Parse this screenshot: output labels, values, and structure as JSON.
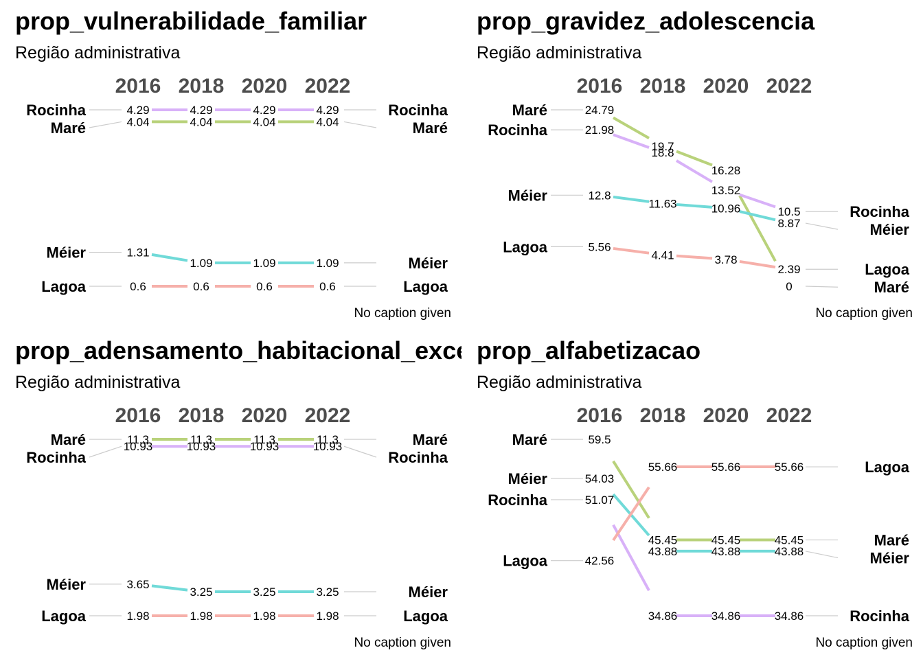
{
  "chart_data": [
    {
      "type": "line",
      "title": "prop_vulnerabilidade_familiar",
      "subtitle": "Região administrativa",
      "caption": "No caption given",
      "x": [
        "2016",
        "2018",
        "2020",
        "2022"
      ],
      "series": [
        {
          "name": "Rocinha",
          "color": "#d8b1f8",
          "values": [
            4.29,
            4.29,
            4.29,
            4.29
          ]
        },
        {
          "name": "Maré",
          "color": "#b9d27b",
          "values": [
            4.04,
            4.04,
            4.04,
            4.04
          ]
        },
        {
          "name": "Méier",
          "color": "#70dad8",
          "values": [
            1.31,
            1.09,
            1.09,
            1.09
          ]
        },
        {
          "name": "Lagoa",
          "color": "#f6b0aa",
          "values": [
            0.6,
            0.6,
            0.6,
            0.6
          ]
        }
      ],
      "value_labels": [
        [
          "4.29",
          "4.29",
          "4.29",
          "4.29"
        ],
        [
          "4.04",
          "4.04",
          "4.04",
          "4.04"
        ],
        [
          "1.31",
          "1.09",
          "1.09",
          "1.09"
        ],
        [
          "0.6",
          "0.6",
          "0.6",
          "0.6"
        ]
      ],
      "ylim": [
        0.6,
        4.29
      ],
      "grid": false,
      "legend": "none"
    },
    {
      "type": "line",
      "title": "prop_gravidez_adolescencia",
      "subtitle": "Região administrativa",
      "caption": "No caption given",
      "x": [
        "2016",
        "2018",
        "2020",
        "2022"
      ],
      "series": [
        {
          "name": "Maré",
          "color": "#b9d27b",
          "values": [
            24.79,
            19.7,
            16.28,
            0
          ]
        },
        {
          "name": "Rocinha",
          "color": "#d8b1f8",
          "values": [
            21.98,
            18.8,
            13.52,
            10.5
          ]
        },
        {
          "name": "Méier",
          "color": "#70dad8",
          "values": [
            12.8,
            11.63,
            10.96,
            8.87
          ]
        },
        {
          "name": "Lagoa",
          "color": "#f6b0aa",
          "values": [
            5.56,
            4.41,
            3.78,
            2.39
          ]
        }
      ],
      "value_labels": [
        [
          "24.79",
          "19.7",
          "16.28",
          "0"
        ],
        [
          "21.98",
          "18.8",
          "13.52",
          "10.5"
        ],
        [
          "12.8",
          "11.63",
          "10.96",
          "8.87"
        ],
        [
          "5.56",
          "4.41",
          "3.78",
          "2.39"
        ]
      ],
      "ylim": [
        0,
        24.79
      ],
      "grid": false,
      "legend": "none"
    },
    {
      "type": "line",
      "title": "prop_adensamento_habitacional_excessivo",
      "subtitle": "Região administrativa",
      "caption": "No caption given",
      "x": [
        "2016",
        "2018",
        "2020",
        "2022"
      ],
      "series": [
        {
          "name": "Maré",
          "color": "#b9d27b",
          "values": [
            11.3,
            11.3,
            11.3,
            11.3
          ]
        },
        {
          "name": "Rocinha",
          "color": "#d8b1f8",
          "values": [
            10.93,
            10.93,
            10.93,
            10.93
          ]
        },
        {
          "name": "Méier",
          "color": "#70dad8",
          "values": [
            3.65,
            3.25,
            3.25,
            3.25
          ]
        },
        {
          "name": "Lagoa",
          "color": "#f6b0aa",
          "values": [
            1.98,
            1.98,
            1.98,
            1.98
          ]
        }
      ],
      "value_labels": [
        [
          "11.3",
          "11.3",
          "11.3",
          "11.3"
        ],
        [
          "10.93",
          "10.93",
          "10.93",
          "10.93"
        ],
        [
          "3.65",
          "3.25",
          "3.25",
          "3.25"
        ],
        [
          "1.98",
          "1.98",
          "1.98",
          "1.98"
        ]
      ],
      "ylim": [
        1.98,
        11.3
      ],
      "grid": false,
      "legend": "none"
    },
    {
      "type": "line",
      "title": "prop_alfabetizacao",
      "subtitle": "Região administrativa",
      "caption": "No caption given",
      "x": [
        "2016",
        "2018",
        "2020",
        "2022"
      ],
      "series": [
        {
          "name": "Maré",
          "color": "#b9d27b",
          "values": [
            59.5,
            45.45,
            45.45,
            45.45
          ]
        },
        {
          "name": "Méier",
          "color": "#70dad8",
          "values": [
            54.03,
            43.88,
            43.88,
            43.88
          ]
        },
        {
          "name": "Rocinha",
          "color": "#d8b1f8",
          "values": [
            51.07,
            34.86,
            34.86,
            34.86
          ]
        },
        {
          "name": "Lagoa",
          "color": "#f6b0aa",
          "values": [
            42.56,
            55.66,
            55.66,
            55.66
          ]
        }
      ],
      "value_labels": [
        [
          "59.5",
          "45.45",
          "45.45",
          "45.45"
        ],
        [
          "54.03",
          "43.88",
          "43.88",
          "43.88"
        ],
        [
          "51.07",
          "34.86",
          "34.86",
          "34.86"
        ],
        [
          "42.56",
          "55.66",
          "55.66",
          "55.66"
        ]
      ],
      "ylim": [
        34.86,
        59.5
      ],
      "grid": false,
      "legend": "none"
    }
  ]
}
